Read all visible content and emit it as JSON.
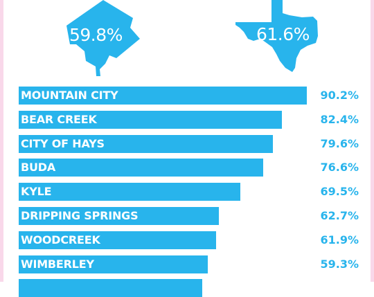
{
  "colors": {
    "accent": "#28b4ec",
    "edge": "#f9d8ea",
    "background": "#ffffff"
  },
  "header": {
    "left_shape_icon": "washington-dc-outline-icon",
    "left_value": "59.8%",
    "right_shape_icon": "texas-outline-icon",
    "right_value": "61.6%"
  },
  "chart_data": {
    "type": "bar",
    "orientation": "horizontal",
    "xlim": [
      0,
      100
    ],
    "categories": [
      "MOUNTAIN CITY",
      "BEAR CREEK",
      "CITY OF HAYS",
      "BUDA",
      "KYLE",
      "DRIPPING SPRINGS",
      "WOODCREEK",
      "WIMBERLEY",
      ""
    ],
    "values": [
      90.2,
      82.4,
      79.6,
      76.6,
      69.5,
      62.7,
      61.9,
      59.3,
      57.5
    ],
    "value_labels": [
      "90.2%",
      "82.4%",
      "79.6%",
      "76.6%",
      "69.5%",
      "62.7%",
      "61.9%",
      "59.3%",
      ""
    ],
    "grid": false,
    "legend": "none"
  }
}
